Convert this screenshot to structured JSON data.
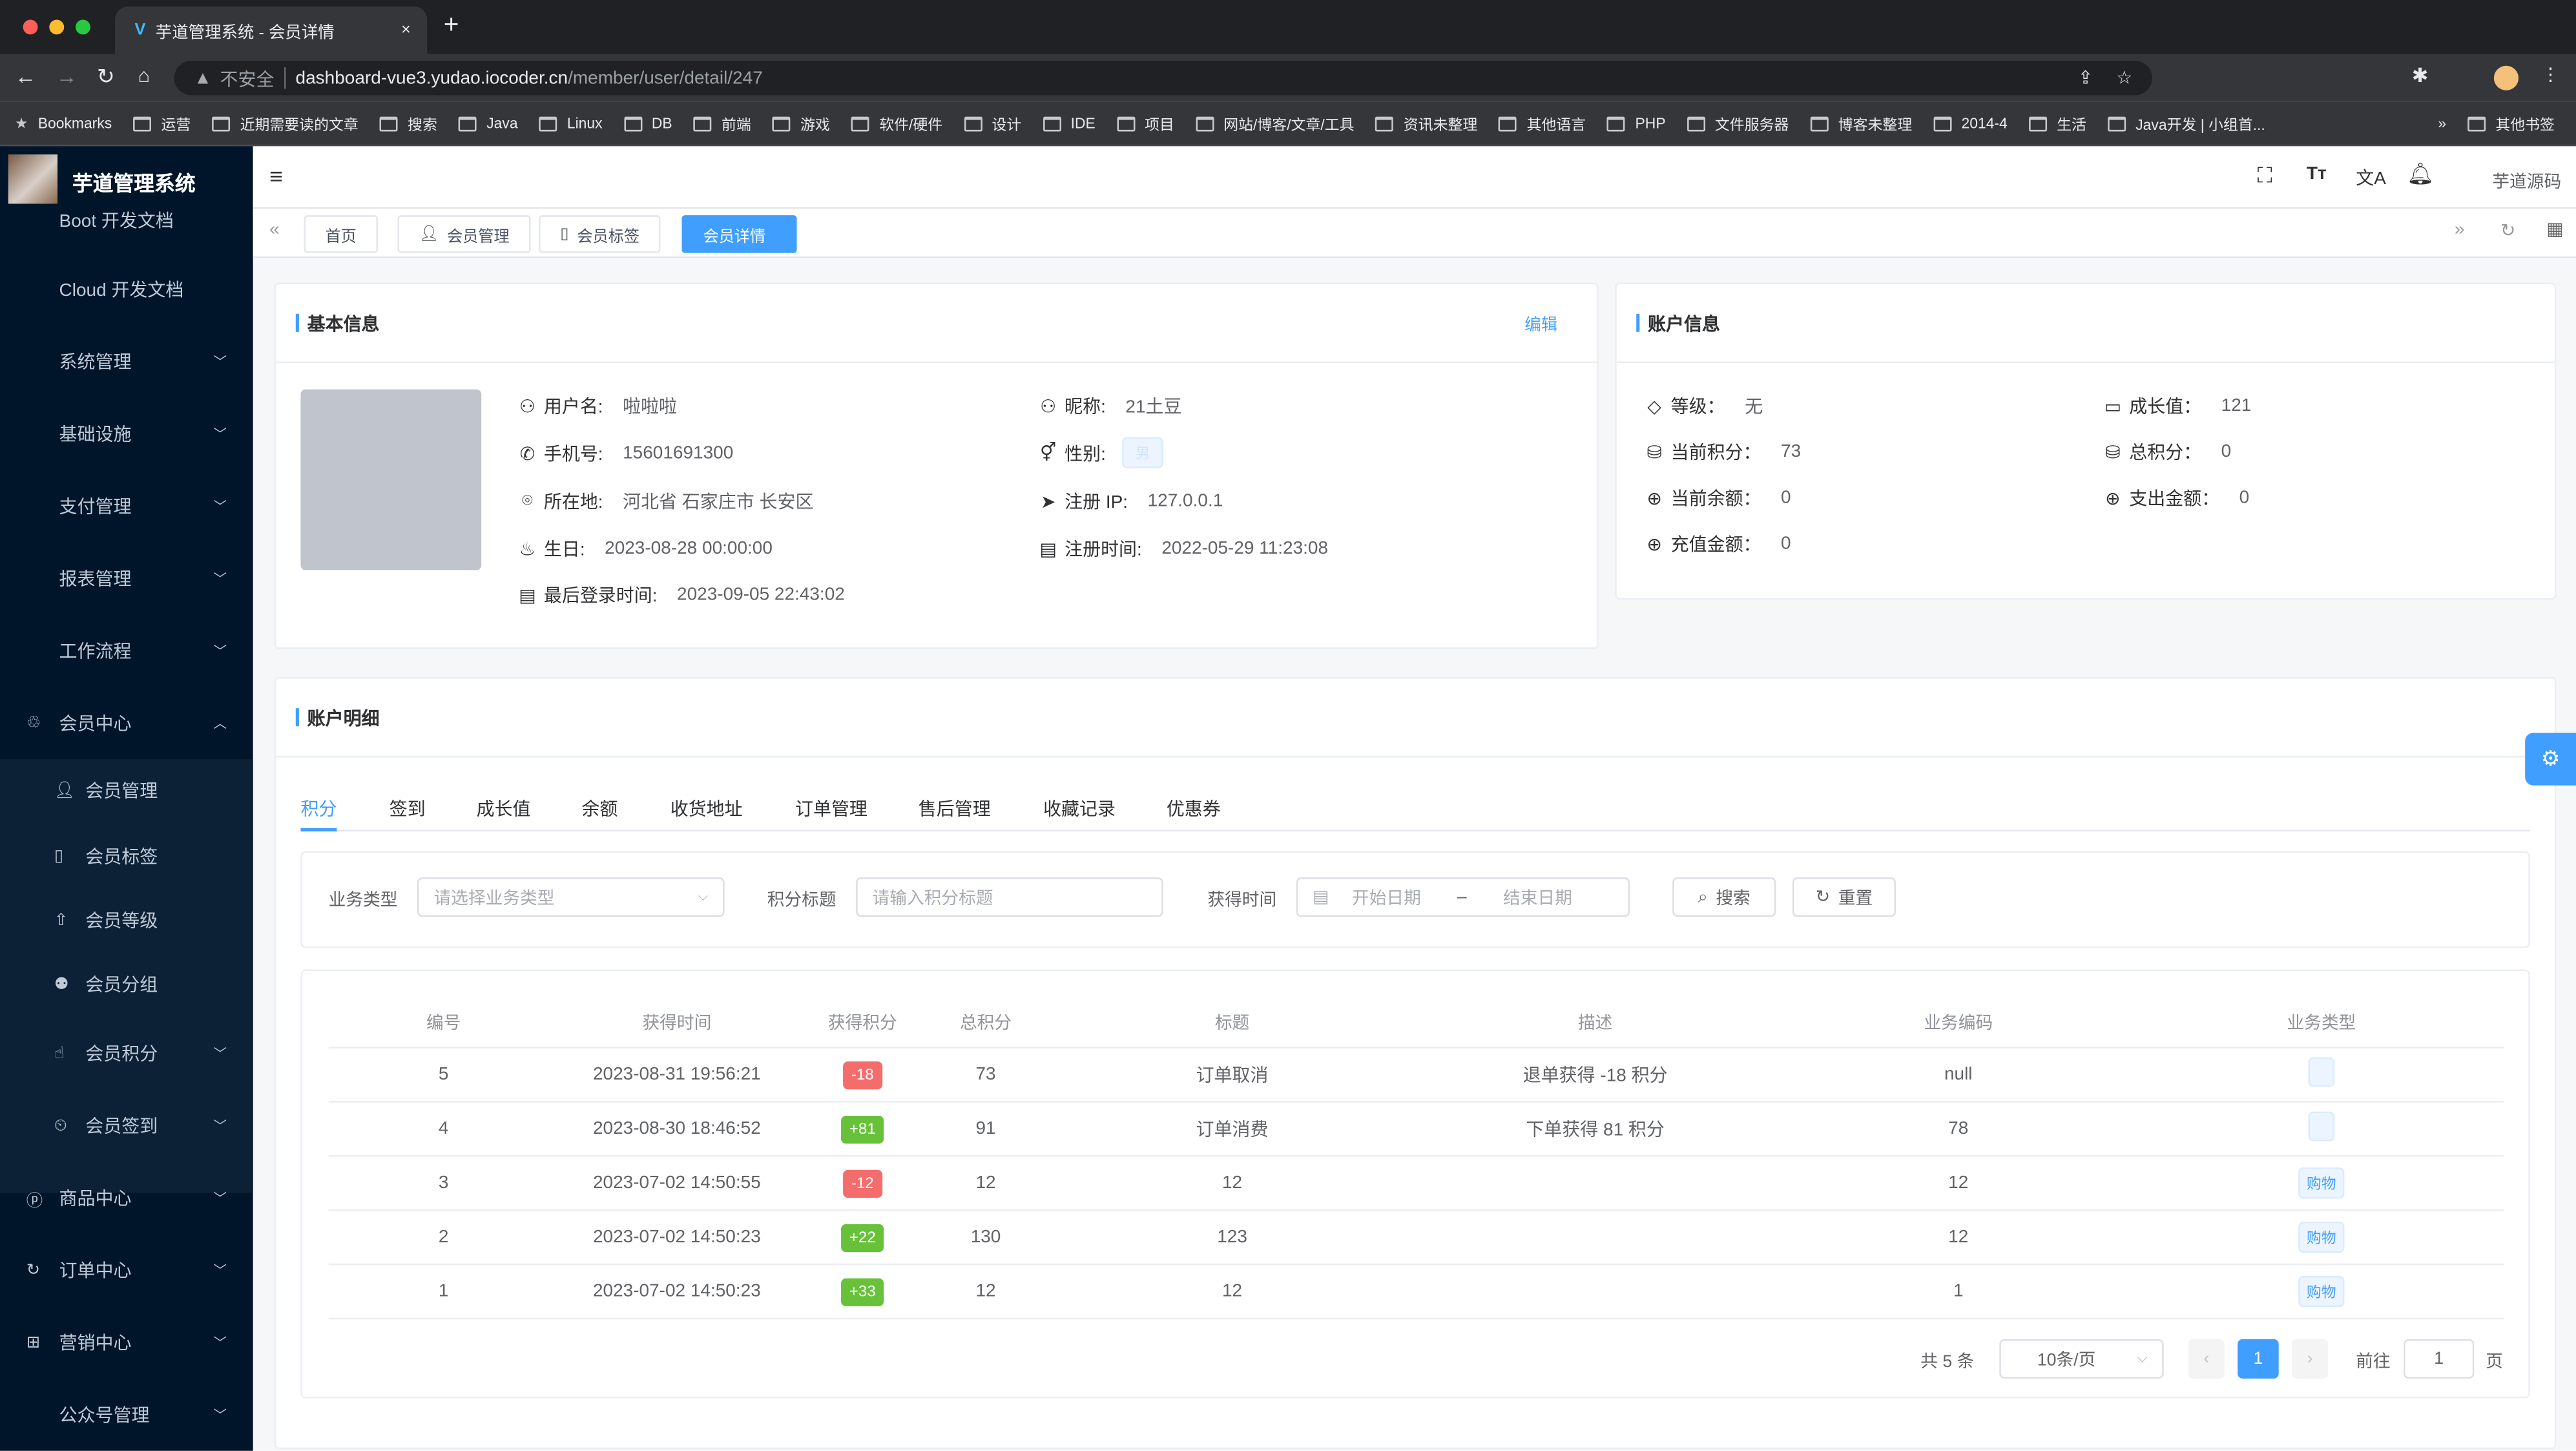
{
  "browser": {
    "tab_title": "芋道管理系统 - 会员详情",
    "security": "不安全",
    "url_host": "dashboard-vue3.yudao.iocoder.cn",
    "url_path": "/member/user/detail/247",
    "bookmarks": [
      "Bookmarks",
      "运营",
      "近期需要读的文章",
      "搜索",
      "Java",
      "Linux",
      "DB",
      "前端",
      "游戏",
      "软件/硬件",
      "设计",
      "IDE",
      "项目",
      "网站/博客/文章/工具",
      "资讯未整理",
      "其他语言",
      "PHP",
      "文件服务器",
      "博客未整理",
      "2014-4",
      "生活",
      "Java开发 | 小组首...",
      "»",
      "其他书签"
    ]
  },
  "sidebar": {
    "title": "芋道管理系统",
    "items": [
      {
        "label": "Boot 开发文档"
      },
      {
        "label": "Cloud 开发文档"
      },
      {
        "label": "系统管理"
      },
      {
        "label": "基础设施"
      },
      {
        "label": "支付管理"
      },
      {
        "label": "报表管理"
      },
      {
        "label": "工作流程"
      },
      {
        "label": "会员中心"
      },
      {
        "label": "会员管理"
      },
      {
        "label": "会员标签"
      },
      {
        "label": "会员等级"
      },
      {
        "label": "会员分组"
      },
      {
        "label": "会员积分"
      },
      {
        "label": "会员签到"
      },
      {
        "label": "商品中心"
      },
      {
        "label": "订单中心"
      },
      {
        "label": "营销中心"
      },
      {
        "label": "公众号管理"
      }
    ]
  },
  "header": {
    "source_link": "芋道源码"
  },
  "tags": [
    "首页",
    "会员管理",
    "会员标签",
    "会员详情"
  ],
  "basic": {
    "title": "基本信息",
    "edit": "编辑",
    "username_label": "用户名:",
    "username": "啦啦啦",
    "nickname_label": "昵称:",
    "nickname": "21土豆",
    "mobile_label": "手机号:",
    "mobile": "15601691300",
    "sex_label": "性别:",
    "sex": "男",
    "area_label": "所在地:",
    "area": "河北省 石家庄市 长安区",
    "ip_label": "注册 IP:",
    "ip": "127.0.0.1",
    "birthday_label": "生日:",
    "birthday": "2023-08-28 00:00:00",
    "create_label": "注册时间:",
    "create_time": "2022-05-29 11:23:08",
    "login_label": "最后登录时间:",
    "login_time": "2023-09-05 22:43:02"
  },
  "account": {
    "title": "账户信息",
    "level_label": "等级：",
    "level": "无",
    "exp_label": "成长值：",
    "exp": "121",
    "point_label": "当前积分：",
    "point": "73",
    "total_point_label": "总积分：",
    "total_point": "0",
    "balance_label": "当前余额：",
    "balance": "0",
    "spent_label": "支出金额：",
    "spent": "0",
    "recharge_label": "充值金额：",
    "recharge": "0"
  },
  "details": {
    "title": "账户明细",
    "tabs": [
      "积分",
      "签到",
      "成长值",
      "余额",
      "收货地址",
      "订单管理",
      "售后管理",
      "收藏记录",
      "优惠券"
    ],
    "form": {
      "biz_type_label": "业务类型",
      "biz_type_placeholder": "请选择业务类型",
      "title_label": "积分标题",
      "title_placeholder": "请输入积分标题",
      "time_label": "获得时间",
      "start_placeholder": "开始日期",
      "sep": "–",
      "end_placeholder": "结束日期",
      "search": "搜索",
      "reset": "重置"
    },
    "columns": [
      "编号",
      "获得时间",
      "获得积分",
      "总积分",
      "标题",
      "描述",
      "业务编码",
      "业务类型"
    ],
    "rows": [
      {
        "id": "5",
        "time": "2023-08-31 19:56:21",
        "point": "-18",
        "total": "73",
        "title": "订单取消",
        "desc": "退单获得 -18 积分",
        "biz_id": "null",
        "biz_type": ""
      },
      {
        "id": "4",
        "time": "2023-08-30 18:46:52",
        "point": "+81",
        "total": "91",
        "title": "订单消费",
        "desc": "下单获得 81 积分",
        "biz_id": "78",
        "biz_type": ""
      },
      {
        "id": "3",
        "time": "2023-07-02 14:50:55",
        "point": "-12",
        "total": "12",
        "title": "12",
        "desc": "",
        "biz_id": "12",
        "biz_type": "购物"
      },
      {
        "id": "2",
        "time": "2023-07-02 14:50:23",
        "point": "+22",
        "total": "130",
        "title": "123",
        "desc": "",
        "biz_id": "12",
        "biz_type": "购物"
      },
      {
        "id": "1",
        "time": "2023-07-02 14:50:23",
        "point": "+33",
        "total": "12",
        "title": "12",
        "desc": "",
        "biz_id": "1",
        "biz_type": "购物"
      }
    ],
    "pagination": {
      "total": "共 5 条",
      "page_size": "10条/页",
      "current": "1",
      "goto_label": "前往",
      "goto_value": "1",
      "page_suffix": "页"
    }
  },
  "colors": {
    "primary": "#409eff",
    "sidebar": "#001529",
    "positive": "#67c23a",
    "negative": "#f56c6c"
  }
}
